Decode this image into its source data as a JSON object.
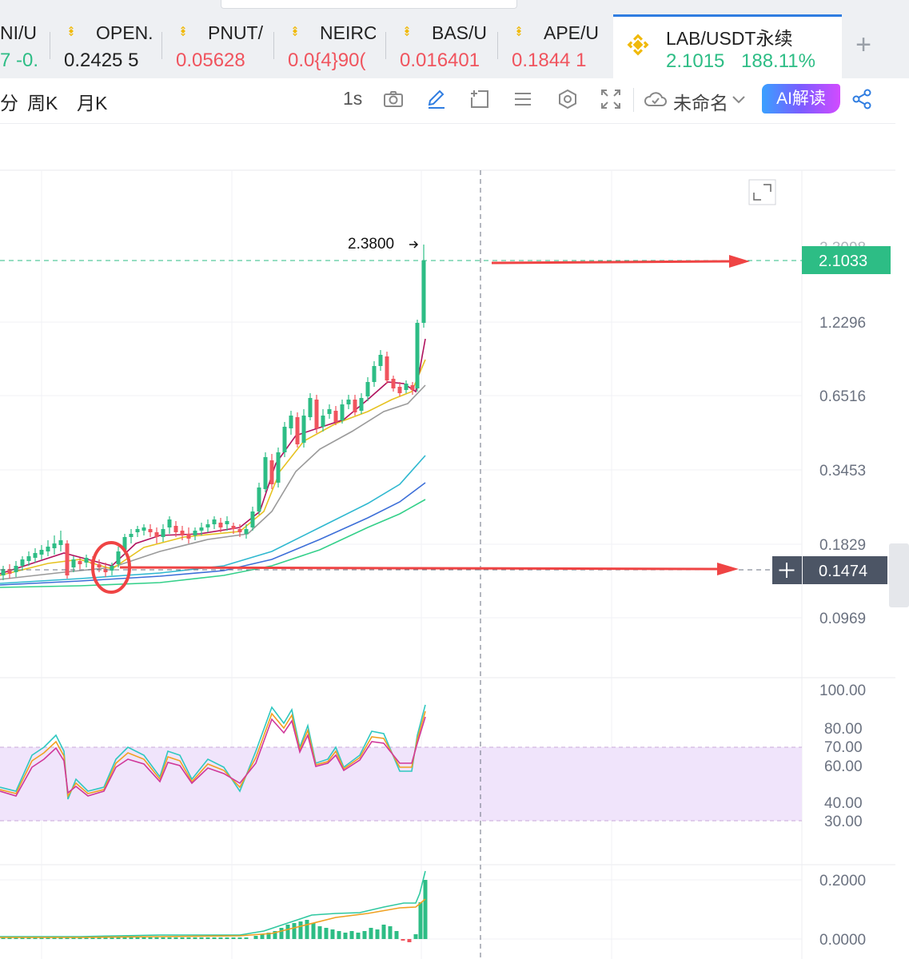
{
  "tickers": [
    {
      "name": "NI/U",
      "value": "7 -0.",
      "value_color": "#2dbd85"
    },
    {
      "name": "OPEN.",
      "value": "0.2425  5",
      "value_color": "#222222"
    },
    {
      "name": "PNUT/",
      "value": "0.05628",
      "value_color": "#f0545e"
    },
    {
      "name": "NEIRC",
      "value": "0.0{4}90(",
      "value_color": "#f0545e"
    },
    {
      "name": "BAS/U",
      "value": "0.016401",
      "value_color": "#f0545e"
    },
    {
      "name": "APE/U",
      "value": "0.1844  1",
      "value_color": "#f0545e"
    }
  ],
  "active_tab": {
    "name": "LAB/USDT永续",
    "price": "2.1015",
    "change": "188.11%"
  },
  "toolbar": {
    "intervals": [
      "分",
      "周K",
      "月K"
    ],
    "speed": "1s",
    "layout_name": "未命名",
    "ai_button": "AI解读"
  },
  "icons": [
    "binance-icon",
    "add-tab-icon",
    "camera-icon",
    "pencil-icon",
    "add-frame-icon",
    "list-icon",
    "settings-hex-icon",
    "fullscreen-icon",
    "cloud-icon",
    "chevron-down-icon",
    "share-icon",
    "expand-icon",
    "crosshair-plus-icon"
  ],
  "chart_data": {
    "type": "candlestick",
    "price_axis": [
      "1.2296",
      "0.6516",
      "0.3453",
      "0.1829",
      "0.0969"
    ],
    "high_label": "2.3800",
    "last_price_tag": "2.1033",
    "crosshair_price_tag": "0.1474",
    "rsi_axis": [
      "100.00",
      "80.00",
      "70.00",
      "60.00",
      "40.00",
      "30.00"
    ],
    "macd_axis": [
      "0.2000",
      "0.0000"
    ],
    "colors": {
      "up": "#2dbd85",
      "down": "#f0545e",
      "price_tag": "#2dbd85",
      "crosshair_tag": "#4c5565",
      "annotation": "#ef4444",
      "rsi_band": "#f0e4fb"
    }
  }
}
